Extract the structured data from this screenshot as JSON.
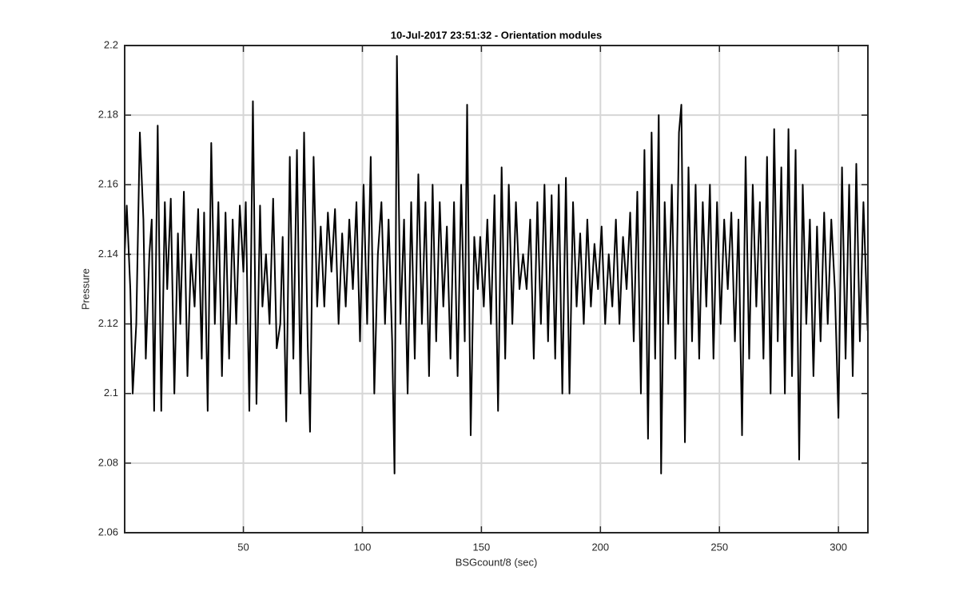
{
  "chart_data": {
    "type": "line",
    "title": "10-Jul-2017 23:51:32 - Orientation modules",
    "x_label": "BSGcount/8 (sec)",
    "y_label": "Pressure",
    "color": "#000000",
    "grid": true,
    "xlim": [
      0.125,
      312.375
    ],
    "ylim": [
      2.06,
      2.2
    ],
    "xticks": [
      50,
      100,
      150,
      200,
      250,
      300
    ],
    "yticks": [
      2.06,
      2.08,
      2.1,
      2.12,
      2.14,
      2.16,
      2.18,
      2.2
    ],
    "x": [
      0.125,
      1,
      2.5,
      3.5,
      5,
      6.5,
      8,
      9,
      10.5,
      11.5,
      12.5,
      14,
      15.5,
      17,
      18,
      19.5,
      21,
      22.5,
      23.5,
      25,
      26.5,
      28,
      29.5,
      31,
      32.5,
      33.5,
      35,
      36.5,
      38,
      39.5,
      41,
      42.5,
      44,
      45.5,
      47,
      48.5,
      50,
      51,
      52.5,
      54,
      55.5,
      57,
      58,
      59.5,
      61,
      62.5,
      64,
      65.5,
      66.5,
      68,
      69.5,
      71,
      72.5,
      74,
      75.5,
      77,
      78,
      79.5,
      81,
      82.5,
      84,
      85.5,
      87,
      88.5,
      90,
      91.5,
      93,
      94.5,
      96,
      97.5,
      99,
      100.5,
      102,
      103.5,
      105,
      106.5,
      108,
      109.5,
      111,
      112.5,
      113.5,
      114.5,
      116,
      117.5,
      119,
      120.5,
      122,
      123.5,
      125,
      126.5,
      128,
      129.5,
      131,
      132.5,
      134,
      135.5,
      137,
      138.5,
      140,
      141.5,
      143,
      144,
      145.5,
      147,
      148.5,
      149.5,
      151,
      152.5,
      154,
      155.5,
      157,
      158.5,
      160,
      161.5,
      163,
      164.5,
      166,
      167.5,
      169,
      170.5,
      172,
      173.5,
      175,
      176.5,
      178,
      179.5,
      181,
      182.5,
      184,
      185.5,
      187,
      188.5,
      190,
      191.5,
      193,
      194.5,
      196,
      197.5,
      199,
      200.5,
      202,
      203.5,
      205,
      206.5,
      208,
      209.5,
      211,
      212.5,
      214,
      215.5,
      217,
      218.5,
      220,
      221.5,
      223,
      224.5,
      225.5,
      227,
      228.5,
      230,
      231.5,
      233,
      234,
      235.5,
      237,
      238.5,
      240,
      241.5,
      243,
      244.5,
      246,
      247.5,
      249,
      250.5,
      252,
      253.5,
      255,
      256.5,
      258,
      259.5,
      261,
      262.5,
      264,
      265.5,
      267,
      268.5,
      270,
      271.5,
      273,
      274.5,
      276,
      277.5,
      279,
      280.5,
      282,
      283.5,
      285,
      286.5,
      288,
      289.5,
      291,
      292.5,
      294,
      295.5,
      297,
      298.5,
      300,
      301.5,
      303,
      304.5,
      306,
      307.5,
      309,
      310.5,
      312.3
    ],
    "values": [
      2.14,
      2.154,
      2.13,
      2.1,
      2.12,
      2.175,
      2.15,
      2.11,
      2.14,
      2.15,
      2.095,
      2.177,
      2.095,
      2.155,
      2.13,
      2.156,
      2.1,
      2.146,
      2.12,
      2.158,
      2.105,
      2.14,
      2.125,
      2.153,
      2.11,
      2.152,
      2.095,
      2.172,
      2.12,
      2.155,
      2.105,
      2.152,
      2.11,
      2.15,
      2.12,
      2.154,
      2.135,
      2.155,
      2.095,
      2.184,
      2.097,
      2.154,
      2.125,
      2.14,
      2.12,
      2.156,
      2.113,
      2.12,
      2.145,
      2.092,
      2.168,
      2.11,
      2.17,
      2.1,
      2.175,
      2.115,
      2.089,
      2.168,
      2.125,
      2.148,
      2.125,
      2.152,
      2.135,
      2.153,
      2.12,
      2.146,
      2.125,
      2.15,
      2.13,
      2.155,
      2.115,
      2.16,
      2.12,
      2.168,
      2.1,
      2.14,
      2.155,
      2.12,
      2.15,
      2.115,
      2.077,
      2.197,
      2.12,
      2.15,
      2.1,
      2.155,
      2.11,
      2.163,
      2.12,
      2.155,
      2.105,
      2.16,
      2.115,
      2.155,
      2.125,
      2.148,
      2.11,
      2.155,
      2.105,
      2.16,
      2.115,
      2.183,
      2.088,
      2.145,
      2.13,
      2.145,
      2.125,
      2.15,
      2.12,
      2.157,
      2.095,
      2.165,
      2.11,
      2.16,
      2.12,
      2.155,
      2.13,
      2.14,
      2.13,
      2.15,
      2.11,
      2.155,
      2.12,
      2.16,
      2.115,
      2.157,
      2.11,
      2.16,
      2.1,
      2.162,
      2.1,
      2.155,
      2.125,
      2.146,
      2.12,
      2.15,
      2.125,
      2.143,
      2.13,
      2.148,
      2.12,
      2.14,
      2.125,
      2.15,
      2.12,
      2.145,
      2.13,
      2.152,
      2.115,
      2.158,
      2.1,
      2.17,
      2.087,
      2.175,
      2.11,
      2.18,
      2.077,
      2.155,
      2.12,
      2.16,
      2.11,
      2.175,
      2.183,
      2.086,
      2.165,
      2.115,
      2.16,
      2.11,
      2.155,
      2.125,
      2.16,
      2.11,
      2.155,
      2.12,
      2.15,
      2.13,
      2.152,
      2.115,
      2.15,
      2.088,
      2.168,
      2.11,
      2.16,
      2.125,
      2.155,
      2.11,
      2.168,
      2.1,
      2.176,
      2.115,
      2.165,
      2.1,
      2.176,
      2.105,
      2.17,
      2.081,
      2.16,
      2.12,
      2.15,
      2.105,
      2.148,
      2.115,
      2.152,
      2.12,
      2.15,
      2.13,
      2.093,
      2.165,
      2.11,
      2.16,
      2.105,
      2.166,
      2.115,
      2.155,
      2.118
    ]
  }
}
